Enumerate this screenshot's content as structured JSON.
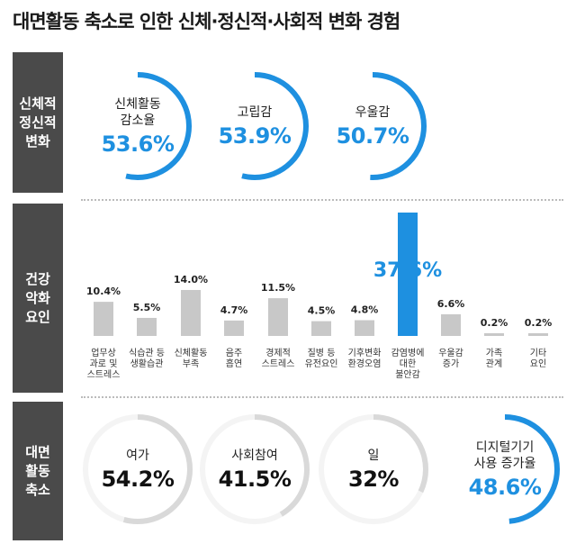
{
  "title": "대면활동 축소로 인한 신체·정신적·사회적 변화 경험",
  "colors": {
    "accent": "#1e90e0",
    "gray_bar": "#c8c8c8",
    "ring_gray": "#d9d9d9",
    "side_bg": "#4a4a4a"
  },
  "sections": {
    "physical": {
      "label_lines": [
        "신체적",
        "정신적",
        "변화"
      ]
    },
    "health": {
      "label_lines": [
        "건강",
        "악화",
        "요인"
      ]
    },
    "reduction": {
      "label_lines": [
        "대면",
        "활동",
        "축소"
      ]
    }
  },
  "top_circles": [
    {
      "label_lines": [
        "신체활동",
        "감소율"
      ],
      "value": "53.6%",
      "fraction": 0.536
    },
    {
      "label_lines": [
        "고립감"
      ],
      "value": "53.9%",
      "fraction": 0.539
    },
    {
      "label_lines": [
        "우울감"
      ],
      "value": "50.7%",
      "fraction": 0.507
    }
  ],
  "bottom_circles": [
    {
      "label_lines": [
        "여가"
      ],
      "value": "54.2%",
      "fraction": 0.542,
      "highlight": false
    },
    {
      "label_lines": [
        "사회참여"
      ],
      "value": "41.5%",
      "fraction": 0.415,
      "highlight": false
    },
    {
      "label_lines": [
        "일"
      ],
      "value": "32%",
      "fraction": 0.32,
      "highlight": false
    },
    {
      "label_lines": [
        "디지털기기",
        "사용 증가율"
      ],
      "value": "48.6%",
      "fraction": 0.486,
      "highlight": true
    }
  ],
  "chart_data": {
    "type": "bar",
    "categories": [
      [
        "업무상",
        "과로 및",
        "스트레스"
      ],
      [
        "식습관 등",
        "생활습관"
      ],
      [
        "신체활동",
        "부족"
      ],
      [
        "음주",
        "흡연"
      ],
      [
        "경제적",
        "스트레스"
      ],
      [
        "질병 등",
        "유전요인"
      ],
      [
        "기후변화",
        "환경오염"
      ],
      [
        "감염병에",
        "대한",
        "불안감"
      ],
      [
        "우울감",
        "증가"
      ],
      [
        "가족",
        "관계"
      ],
      [
        "기타",
        "요인"
      ]
    ],
    "values": [
      10.4,
      5.5,
      14.0,
      4.7,
      11.5,
      4.5,
      4.8,
      37.6,
      6.6,
      0.2,
      0.2
    ],
    "value_labels": [
      "10.4%",
      "5.5%",
      "14.0%",
      "4.7%",
      "11.5%",
      "4.5%",
      "4.8%",
      "37.6%",
      "6.6%",
      "0.2%",
      "0.2%"
    ],
    "highlight_index": 7
  }
}
